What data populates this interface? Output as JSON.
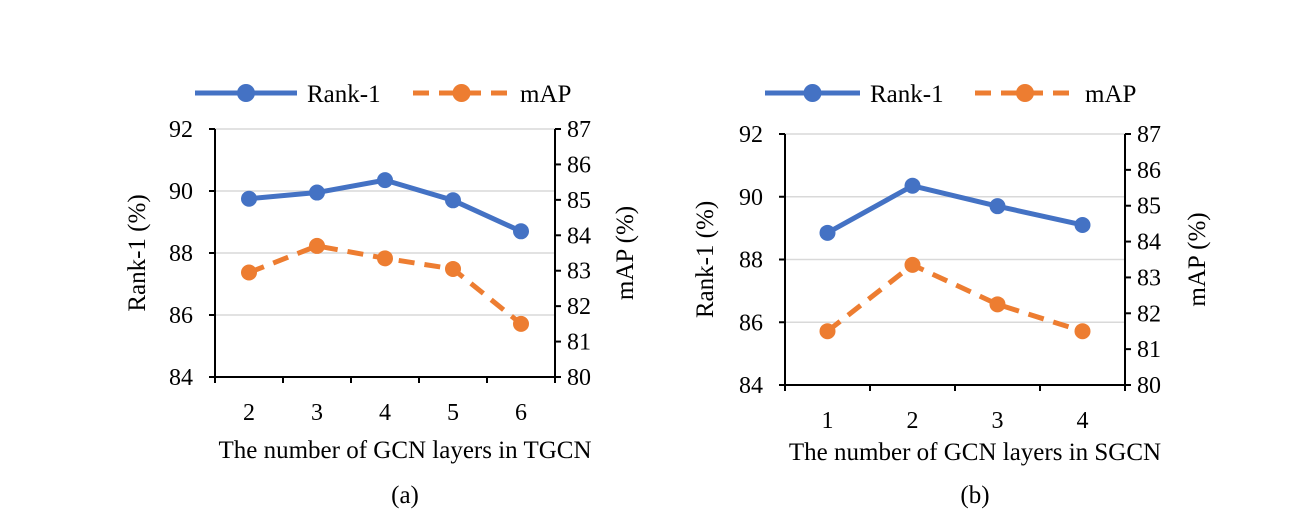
{
  "chart_data": [
    {
      "type": "line",
      "caption": "(a)",
      "xlabel": "The number of GCN layers in TGCN",
      "ylabel": "Rank-1 (%)",
      "y2label": "mAP (%)",
      "categories": [
        "2",
        "3",
        "4",
        "5",
        "6"
      ],
      "ylim": [
        84,
        92
      ],
      "yticks": [
        "84",
        "86",
        "88",
        "90",
        "92"
      ],
      "y2lim": [
        80,
        87
      ],
      "y2ticks": [
        "80",
        "81",
        "82",
        "83",
        "84",
        "85",
        "86",
        "87"
      ],
      "grid": true,
      "legend_position": "top",
      "series": [
        {
          "name": "Rank-1",
          "axis": "left",
          "color": "#4472C4",
          "style": "solid",
          "values": [
            89.75,
            89.95,
            90.35,
            89.7,
            88.7
          ]
        },
        {
          "name": "mAP",
          "axis": "right",
          "color": "#ED7D31",
          "style": "dashed",
          "values": [
            82.95,
            83.7,
            83.35,
            83.05,
            81.5
          ]
        }
      ]
    },
    {
      "type": "line",
      "caption": "(b)",
      "xlabel": "The number of GCN layers in SGCN",
      "ylabel": "Rank-1 (%)",
      "y2label": "mAP (%)",
      "categories": [
        "1",
        "2",
        "3",
        "4"
      ],
      "ylim": [
        84,
        92
      ],
      "yticks": [
        "84",
        "86",
        "88",
        "90",
        "92"
      ],
      "y2lim": [
        80,
        87
      ],
      "y2ticks": [
        "80",
        "81",
        "82",
        "83",
        "84",
        "85",
        "86",
        "87"
      ],
      "grid": true,
      "legend_position": "top",
      "series": [
        {
          "name": "Rank-1",
          "axis": "left",
          "color": "#4472C4",
          "style": "solid",
          "values": [
            88.85,
            90.35,
            89.7,
            89.1
          ]
        },
        {
          "name": "mAP",
          "axis": "right",
          "color": "#ED7D31",
          "style": "dashed",
          "values": [
            81.5,
            83.35,
            82.25,
            81.5
          ]
        }
      ]
    }
  ]
}
